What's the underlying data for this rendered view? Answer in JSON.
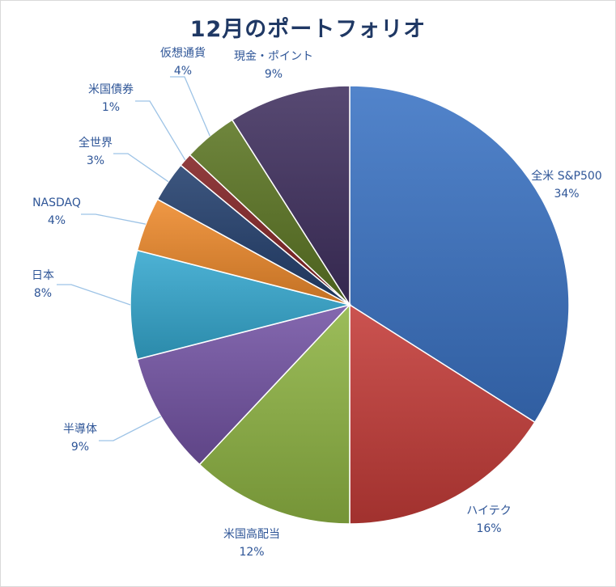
{
  "chart_data": {
    "type": "pie",
    "title": "12月のポートフォリオ",
    "slices": [
      {
        "label": "全米 S&P500",
        "value": 34,
        "pct": "34%",
        "color": "#3a73c4"
      },
      {
        "label": "ハイテク",
        "value": 16,
        "pct": "16%",
        "color": "#c43c38"
      },
      {
        "label": "米国高配当",
        "value": 12,
        "pct": "12%",
        "color": "#8fb443"
      },
      {
        "label": "半導体",
        "value": 9,
        "pct": "9%",
        "color": "#7353a4"
      },
      {
        "label": "日本",
        "value": 8,
        "pct": "8%",
        "color": "#35a8cf"
      },
      {
        "label": "NASDAQ",
        "value": 4,
        "pct": "4%",
        "color": "#ee8a2c"
      },
      {
        "label": "全世界",
        "value": 3,
        "pct": "3%",
        "color": "#233f6e"
      },
      {
        "label": "米国債券",
        "value": 1,
        "pct": "1%",
        "color": "#822224"
      },
      {
        "label": "仮想通貨",
        "value": 4,
        "pct": "4%",
        "color": "#5b7523"
      },
      {
        "label": "現金・ポイント",
        "value": 9,
        "pct": "9%",
        "color": "#40305f"
      }
    ]
  }
}
